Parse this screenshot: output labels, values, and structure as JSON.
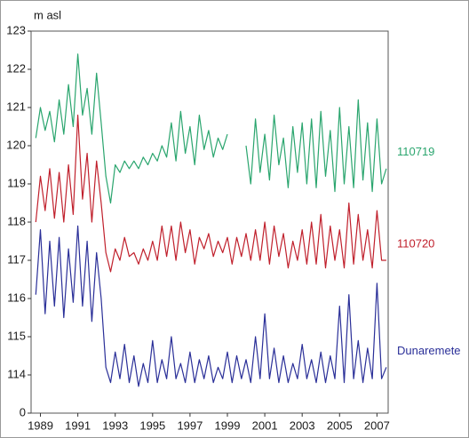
{
  "chart_data": {
    "type": "line",
    "y_axis_label": "m asl",
    "y_axis_bottom_label": "0",
    "xlim": [
      1988.5,
      2007.6
    ],
    "ylim": [
      113,
      123
    ],
    "xticks": [
      1989,
      1991,
      1993,
      1995,
      1997,
      1999,
      2001,
      2003,
      2005,
      2007
    ],
    "yticks": [
      114,
      115,
      116,
      117,
      118,
      119,
      120,
      121,
      122,
      123
    ],
    "x": [
      1988.75,
      1989,
      1989.25,
      1989.5,
      1989.75,
      1990,
      1990.25,
      1990.5,
      1990.75,
      1991,
      1991.25,
      1991.5,
      1991.75,
      1992,
      1992.25,
      1992.5,
      1992.75,
      1993,
      1993.25,
      1993.5,
      1993.75,
      1994,
      1994.25,
      1994.5,
      1994.75,
      1995,
      1995.25,
      1995.5,
      1995.75,
      1996,
      1996.25,
      1996.5,
      1996.75,
      1997,
      1997.25,
      1997.5,
      1997.75,
      1998,
      1998.25,
      1998.5,
      1998.75,
      1999,
      1999.25,
      1999.5,
      1999.75,
      2000,
      2000.25,
      2000.5,
      2000.75,
      2001,
      2001.25,
      2001.5,
      2001.75,
      2002,
      2002.25,
      2002.5,
      2002.75,
      2003,
      2003.25,
      2003.5,
      2003.75,
      2004,
      2004.25,
      2004.5,
      2004.75,
      2005,
      2005.25,
      2005.5,
      2005.75,
      2006,
      2006.25,
      2006.5,
      2006.75,
      2007,
      2007.25,
      2007.5
    ],
    "series": [
      {
        "name": "110719",
        "color": "#2aa56e",
        "values": [
          120.2,
          121.0,
          120.4,
          120.9,
          120.1,
          121.2,
          120.3,
          121.6,
          120.5,
          122.4,
          120.8,
          121.5,
          120.3,
          121.9,
          120.6,
          119.2,
          118.5,
          119.5,
          119.3,
          119.6,
          119.4,
          119.6,
          119.4,
          119.7,
          119.5,
          119.8,
          119.6,
          120.0,
          119.7,
          120.6,
          119.6,
          120.9,
          119.8,
          120.5,
          119.5,
          120.8,
          119.9,
          120.4,
          119.7,
          120.2,
          119.9,
          120.3,
          null,
          null,
          null,
          120.0,
          119.0,
          120.7,
          119.3,
          120.3,
          119.1,
          120.8,
          119.5,
          120.2,
          118.9,
          120.5,
          119.3,
          120.6,
          119.0,
          120.7,
          118.9,
          120.9,
          119.2,
          120.4,
          118.8,
          121.0,
          119.0,
          120.5,
          118.9,
          121.2,
          119.1,
          120.6,
          118.8,
          120.7,
          119.0,
          119.4
        ]
      },
      {
        "name": "110720",
        "color": "#c0202c",
        "values": [
          118.0,
          119.2,
          118.3,
          119.4,
          118.1,
          119.3,
          118.0,
          119.5,
          118.2,
          120.8,
          118.6,
          119.8,
          118.0,
          119.6,
          118.5,
          117.2,
          116.7,
          117.3,
          117.0,
          117.6,
          117.1,
          117.2,
          116.9,
          117.3,
          117.0,
          117.5,
          117.0,
          117.9,
          117.1,
          117.9,
          117.0,
          118.0,
          117.2,
          117.8,
          116.9,
          117.6,
          117.3,
          117.7,
          117.1,
          117.5,
          117.2,
          117.6,
          116.9,
          117.6,
          117.1,
          117.7,
          117.0,
          117.8,
          117.0,
          118.0,
          116.9,
          117.9,
          117.1,
          117.7,
          116.8,
          117.5,
          117.0,
          117.8,
          116.9,
          118.0,
          116.9,
          118.2,
          116.8,
          117.9,
          117.0,
          117.8,
          116.8,
          118.5,
          116.9,
          118.2,
          117.0,
          117.8,
          116.8,
          118.3,
          117.0,
          117.0
        ]
      },
      {
        "name": "Dunaremete",
        "color": "#2a2f98",
        "values": [
          116.1,
          117.8,
          115.6,
          117.5,
          115.8,
          117.6,
          115.5,
          117.3,
          115.9,
          117.9,
          115.8,
          117.5,
          115.4,
          117.2,
          116.0,
          114.2,
          113.8,
          114.6,
          113.9,
          114.8,
          113.8,
          114.5,
          113.7,
          114.3,
          113.8,
          114.9,
          113.8,
          114.4,
          113.9,
          115.0,
          113.9,
          114.3,
          113.8,
          114.6,
          113.8,
          114.4,
          113.9,
          114.5,
          113.8,
          114.2,
          113.9,
          114.6,
          113.8,
          114.5,
          113.9,
          114.4,
          113.8,
          115.0,
          113.9,
          115.6,
          113.9,
          114.7,
          113.8,
          114.5,
          113.8,
          114.3,
          113.9,
          114.8,
          113.9,
          114.4,
          113.8,
          114.6,
          113.8,
          114.5,
          113.9,
          115.8,
          113.8,
          116.1,
          113.9,
          114.9,
          113.8,
          114.7,
          113.9,
          116.4,
          113.9,
          114.2
        ]
      }
    ]
  }
}
